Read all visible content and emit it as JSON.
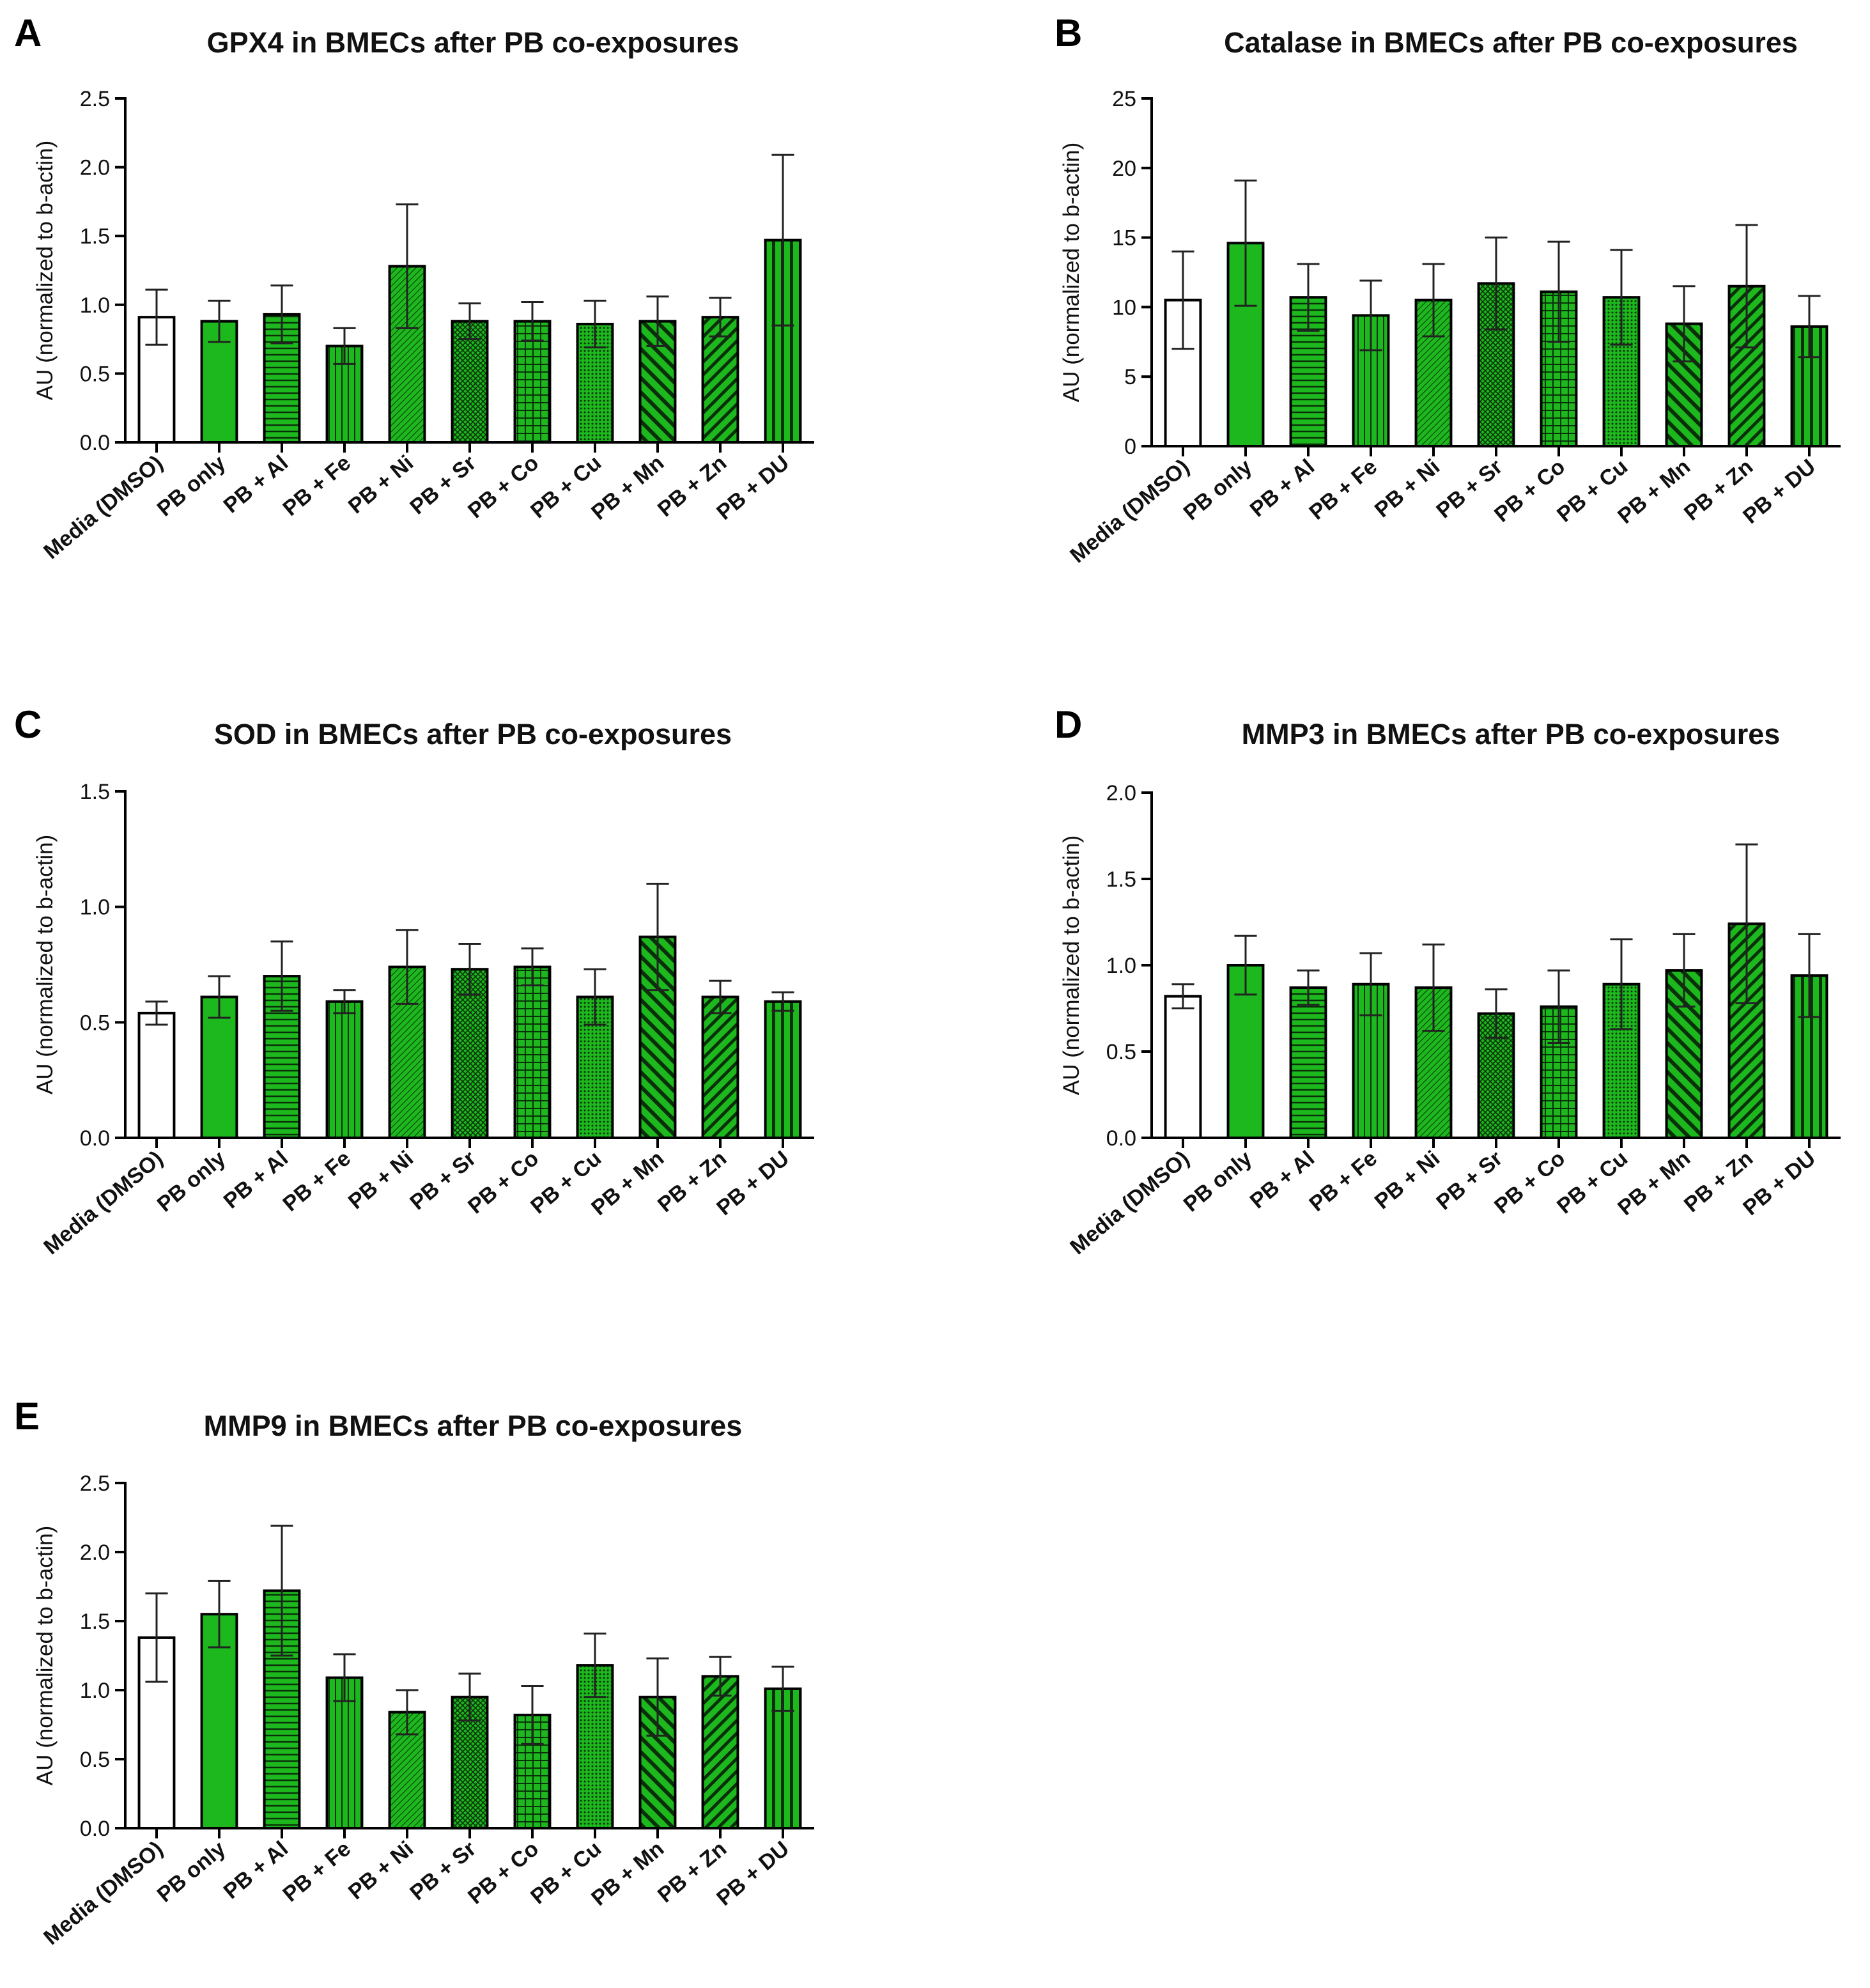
{
  "figure": {
    "bar_fill": "#1DB81D",
    "bar_stroke": "#000000",
    "control_fill": "#FFFFFF"
  },
  "chart_data": [
    {
      "panel": "A",
      "type": "bar",
      "title": "GPX4 in BMECs after PB co-exposures",
      "ylabel": "AU (normalized to b-actin)",
      "xlabel": "",
      "ylim": [
        0,
        2.5
      ],
      "yticks": [
        "0.0",
        "0.5",
        "1.0",
        "1.5",
        "2.0",
        "2.5"
      ],
      "categories": [
        "Media (DMSO)",
        "PB only",
        "PB + Al",
        "PB + Fe",
        "PB + Ni",
        "PB + Sr",
        "PB + Co",
        "PB + Cu",
        "PB + Mn",
        "PB + Zn",
        "PB + DU"
      ],
      "values": [
        0.91,
        0.88,
        0.93,
        0.7,
        1.28,
        0.88,
        0.88,
        0.86,
        0.88,
        0.91,
        1.47
      ],
      "errors": [
        0.2,
        0.15,
        0.21,
        0.13,
        0.45,
        0.13,
        0.14,
        0.17,
        0.18,
        0.14,
        0.62
      ],
      "patterns": [
        "none",
        "solid",
        "hlines",
        "vlines",
        "diag-fine",
        "cross-diag",
        "grid",
        "dots",
        "diag-thick",
        "diag-medium",
        "vlines-thick"
      ]
    },
    {
      "panel": "B",
      "type": "bar",
      "title": "Catalase in BMECs after PB co-exposures",
      "ylabel": "AU (normalized to b-actin)",
      "xlabel": "",
      "ylim": [
        0,
        25
      ],
      "yticks": [
        "0",
        "5",
        "10",
        "15",
        "20",
        "25"
      ],
      "categories": [
        "Media (DMSO)",
        "PB only",
        "PB + Al",
        "PB + Fe",
        "PB + Ni",
        "PB + Sr",
        "PB + Co",
        "PB + Cu",
        "PB + Mn",
        "PB + Zn",
        "PB + DU"
      ],
      "values": [
        10.5,
        14.6,
        10.7,
        9.4,
        10.5,
        11.7,
        11.1,
        10.7,
        8.8,
        11.5,
        8.6
      ],
      "errors": [
        3.5,
        4.5,
        2.4,
        2.5,
        2.6,
        3.3,
        3.6,
        3.4,
        2.7,
        4.4,
        2.2
      ],
      "patterns": [
        "none",
        "solid",
        "hlines",
        "vlines",
        "diag-fine",
        "cross-diag",
        "grid",
        "dots",
        "diag-thick",
        "diag-medium",
        "vlines-thick"
      ]
    },
    {
      "panel": "C",
      "type": "bar",
      "title": "SOD in BMECs after PB co-exposures",
      "ylabel": "AU (normalized to b-actin)",
      "xlabel": "",
      "ylim": [
        0,
        1.5
      ],
      "yticks": [
        "0.0",
        "0.5",
        "1.0",
        "1.5"
      ],
      "categories": [
        "Media (DMSO)",
        "PB only",
        "PB + Al",
        "PB + Fe",
        "PB + Ni",
        "PB + Sr",
        "PB + Co",
        "PB + Cu",
        "PB + Mn",
        "PB + Zn",
        "PB + DU"
      ],
      "values": [
        0.54,
        0.61,
        0.7,
        0.59,
        0.74,
        0.73,
        0.74,
        0.61,
        0.87,
        0.61,
        0.59
      ],
      "errors": [
        0.05,
        0.09,
        0.15,
        0.05,
        0.16,
        0.11,
        0.08,
        0.12,
        0.23,
        0.07,
        0.04
      ],
      "patterns": [
        "none",
        "solid",
        "hlines",
        "vlines",
        "diag-fine",
        "cross-diag",
        "grid",
        "dots",
        "diag-thick",
        "diag-medium",
        "vlines-thick"
      ]
    },
    {
      "panel": "D",
      "type": "bar",
      "title": "MMP3 in BMECs after PB co-exposures",
      "ylabel": "AU (normalized to b-actin)",
      "xlabel": "",
      "ylim": [
        0,
        2.0
      ],
      "yticks": [
        "0.0",
        "0.5",
        "1.0",
        "1.5",
        "2.0"
      ],
      "categories": [
        "Media (DMSO)",
        "PB only",
        "PB + Al",
        "PB + Fe",
        "PB + Ni",
        "PB + Sr",
        "PB + Co",
        "PB + Cu",
        "PB + Mn",
        "PB + Zn",
        "PB + DU"
      ],
      "values": [
        0.82,
        1.0,
        0.87,
        0.89,
        0.87,
        0.72,
        0.76,
        0.89,
        0.97,
        1.24,
        0.94
      ],
      "errors": [
        0.07,
        0.17,
        0.1,
        0.18,
        0.25,
        0.14,
        0.21,
        0.26,
        0.21,
        0.46,
        0.24
      ],
      "patterns": [
        "none",
        "solid",
        "hlines",
        "vlines",
        "diag-fine",
        "cross-diag",
        "grid",
        "dots",
        "diag-thick",
        "diag-medium",
        "vlines-thick"
      ]
    },
    {
      "panel": "E",
      "type": "bar",
      "title": "MMP9 in BMECs after PB co-exposures",
      "ylabel": "AU (normalized to b-actin)",
      "xlabel": "",
      "ylim": [
        0,
        2.5
      ],
      "yticks": [
        "0.0",
        "0.5",
        "1.0",
        "1.5",
        "2.0",
        "2.5"
      ],
      "categories": [
        "Media (DMSO)",
        "PB only",
        "PB + Al",
        "PB + Fe",
        "PB + Ni",
        "PB + Sr",
        "PB + Co",
        "PB + Cu",
        "PB + Mn",
        "PB + Zn",
        "PB + DU"
      ],
      "values": [
        1.38,
        1.55,
        1.72,
        1.09,
        0.84,
        0.95,
        0.82,
        1.18,
        0.95,
        1.1,
        1.01
      ],
      "errors": [
        0.32,
        0.24,
        0.47,
        0.17,
        0.16,
        0.17,
        0.21,
        0.23,
        0.28,
        0.14,
        0.16
      ],
      "patterns": [
        "none",
        "solid",
        "hlines",
        "vlines",
        "diag-fine",
        "cross-diag",
        "grid",
        "dots",
        "diag-thick",
        "diag-medium",
        "vlines-thick"
      ]
    }
  ]
}
